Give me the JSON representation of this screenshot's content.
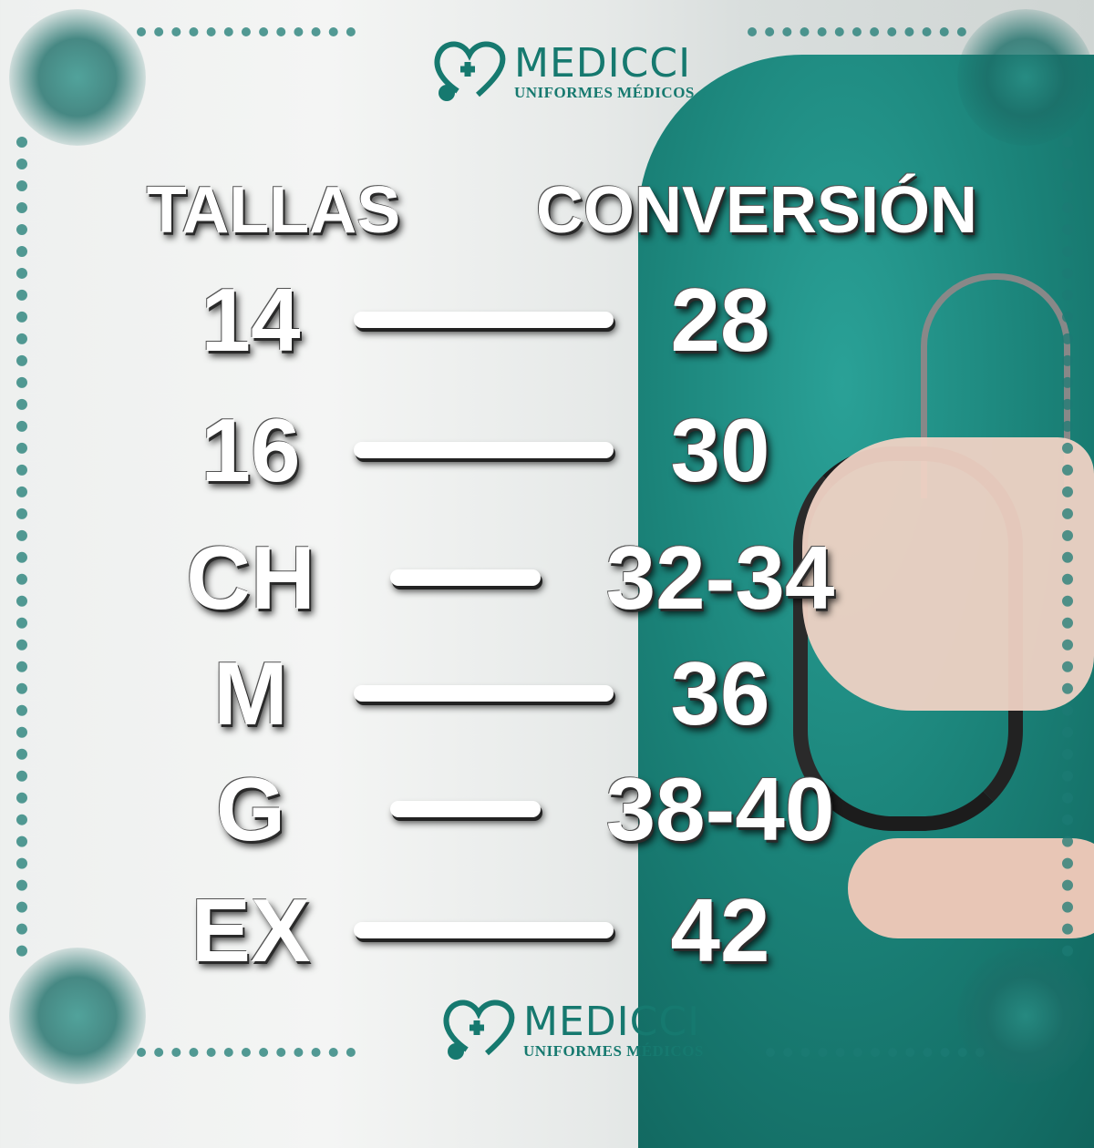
{
  "brand": {
    "name": "MEDICCI",
    "tagline": "UNIFORMES MÉDICOS",
    "color": "#16796f"
  },
  "headers": {
    "left": "TALLAS",
    "right": "CONVERSIÓN"
  },
  "rows": [
    {
      "talla": "14",
      "conversion": "28"
    },
    {
      "talla": "16",
      "conversion": "30"
    },
    {
      "talla": "CH",
      "conversion": "32-34"
    },
    {
      "talla": "M",
      "conversion": "36"
    },
    {
      "talla": "G",
      "conversion": "38-40"
    },
    {
      "talla": "EX",
      "conversion": "42"
    }
  ]
}
